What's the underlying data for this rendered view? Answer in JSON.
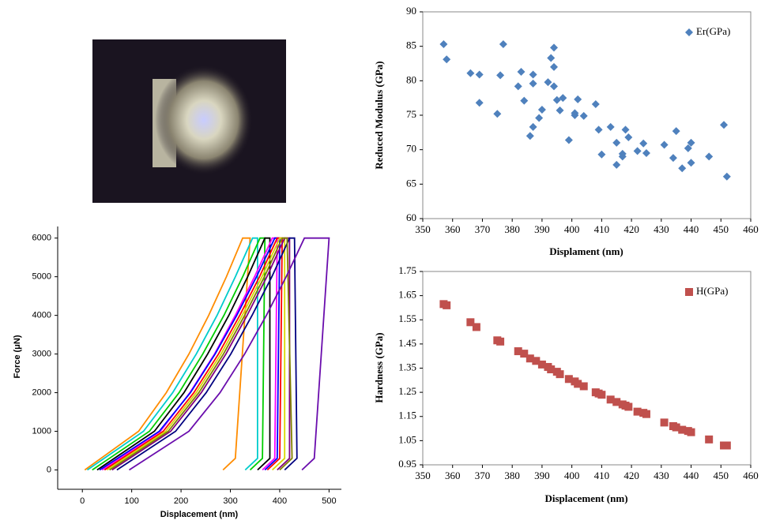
{
  "chart_data": [
    {
      "type": "line",
      "xlabel": "Displacement (nm)",
      "ylabel": "Force (μN)",
      "xlim": [
        -50,
        525
      ],
      "ylim": [
        -500,
        6300
      ],
      "xticks": [
        0,
        100,
        200,
        300,
        400,
        500
      ],
      "yticks": [
        0,
        1000,
        2000,
        3000,
        4000,
        5000,
        6000
      ],
      "series": [
        {
          "color": "#ff8c00",
          "x": [
            5,
            114,
            170,
            216,
            256,
            292,
            325,
            340,
            310,
            285
          ],
          "values": [
            0,
            1000,
            2000,
            3000,
            4000,
            5000,
            6000,
            6000,
            300,
            0
          ]
        },
        {
          "color": "#00cccc",
          "x": [
            10,
            124,
            183,
            231,
            273,
            310,
            345,
            355,
            355,
            330
          ],
          "values": [
            0,
            1000,
            2000,
            3000,
            4000,
            5000,
            6000,
            6000,
            300,
            0
          ]
        },
        {
          "color": "#00cc00",
          "x": [
            20,
            136,
            196,
            244,
            287,
            325,
            360,
            370,
            365,
            340
          ],
          "values": [
            0,
            1000,
            2000,
            3000,
            4000,
            5000,
            6000,
            6000,
            300,
            0
          ]
        },
        {
          "color": "#000000",
          "x": [
            30,
            146,
            206,
            254,
            297,
            335,
            370,
            380,
            380,
            355
          ],
          "values": [
            0,
            1000,
            2000,
            3000,
            4000,
            5000,
            6000,
            6000,
            300,
            0
          ]
        },
        {
          "color": "#ff00ff",
          "x": [
            40,
            158,
            218,
            268,
            310,
            349,
            385,
            395,
            390,
            365
          ],
          "values": [
            0,
            1000,
            2000,
            3000,
            4000,
            5000,
            6000,
            6000,
            300,
            0
          ]
        },
        {
          "color": "#0000ff",
          "x": [
            35,
            156,
            219,
            269,
            313,
            353,
            390,
            400,
            395,
            370
          ],
          "values": [
            0,
            1000,
            2000,
            3000,
            4000,
            5000,
            6000,
            6000,
            300,
            0
          ]
        },
        {
          "color": "#ff0000",
          "x": [
            45,
            164,
            226,
            276,
            319,
            359,
            395,
            405,
            400,
            375
          ],
          "values": [
            0,
            1000,
            2000,
            3000,
            4000,
            5000,
            6000,
            6000,
            300,
            0
          ]
        },
        {
          "color": "#d8d800",
          "x": [
            50,
            169,
            231,
            281,
            324,
            364,
            400,
            410,
            410,
            385
          ],
          "values": [
            0,
            1000,
            2000,
            3000,
            4000,
            5000,
            6000,
            6000,
            300,
            0
          ]
        },
        {
          "color": "#800080",
          "x": [
            60,
            179,
            241,
            291,
            334,
            374,
            410,
            420,
            420,
            395
          ],
          "values": [
            0,
            1000,
            2000,
            3000,
            4000,
            5000,
            6000,
            6000,
            300,
            0
          ]
        },
        {
          "color": "#000080",
          "x": [
            70,
            189,
            251,
            301,
            344,
            384,
            420,
            430,
            435,
            410
          ],
          "values": [
            0,
            1000,
            2000,
            3000,
            4000,
            5000,
            6000,
            6000,
            300,
            0
          ]
        },
        {
          "color": "#808000",
          "x": [
            55,
            174,
            236,
            286,
            329,
            369,
            405,
            415,
            425,
            400
          ],
          "values": [
            0,
            1000,
            2000,
            3000,
            4000,
            5000,
            6000,
            6000,
            300,
            0
          ]
        },
        {
          "color": "#6a0dad",
          "x": [
            95,
            216,
            279,
            329,
            373,
            413,
            450,
            500,
            470,
            445
          ],
          "values": [
            0,
            1000,
            2000,
            3000,
            4000,
            5000,
            6000,
            6000,
            300,
            0
          ]
        }
      ]
    },
    {
      "type": "scatter",
      "xlabel": "Displament (nm)",
      "ylabel": "Reduced Modulus (GPa)",
      "xlim": [
        350,
        460
      ],
      "ylim": [
        60,
        90
      ],
      "xticks": [
        350,
        360,
        370,
        380,
        390,
        400,
        410,
        420,
        430,
        440,
        450,
        460
      ],
      "yticks": [
        60,
        65,
        70,
        75,
        80,
        85,
        90
      ],
      "marker": "diamond",
      "legend": "upper right",
      "series": [
        {
          "name": "Er(GPa)",
          "color": "#4f81bd",
          "x": [
            357,
            358,
            366,
            369,
            369,
            375,
            376,
            377,
            382,
            383,
            384,
            386,
            387,
            387,
            387,
            389,
            390,
            392,
            393,
            394,
            394,
            394,
            395,
            396,
            397,
            399,
            401,
            401,
            402,
            404,
            408,
            409,
            410,
            413,
            415,
            415,
            417,
            417,
            418,
            419,
            422,
            424,
            425,
            431,
            434,
            435,
            437,
            439,
            440,
            440,
            446,
            451,
            452
          ],
          "values": [
            85.3,
            83.1,
            81.1,
            80.9,
            76.8,
            75.2,
            80.8,
            85.3,
            79.2,
            81.3,
            77.1,
            72.0,
            80.9,
            79.6,
            73.3,
            74.6,
            75.8,
            79.8,
            83.3,
            79.2,
            84.8,
            82.0,
            77.2,
            75.7,
            77.5,
            71.4,
            75.0,
            75.3,
            77.3,
            74.9,
            76.6,
            72.9,
            69.3,
            73.3,
            67.8,
            71.0,
            69.0,
            69.4,
            72.9,
            71.8,
            69.8,
            70.9,
            69.5,
            70.7,
            68.8,
            72.7,
            67.3,
            70.2,
            68.1,
            71.0,
            69.0,
            73.6,
            66.1
          ]
        }
      ]
    },
    {
      "type": "scatter",
      "xlabel": "Displacement (nm)",
      "ylabel": "Hardness (GPa)",
      "xlim": [
        350,
        460
      ],
      "ylim": [
        0.95,
        1.75
      ],
      "xticks": [
        350,
        360,
        370,
        380,
        390,
        400,
        410,
        420,
        430,
        440,
        450,
        460
      ],
      "yticks": [
        0.95,
        1.05,
        1.15,
        1.25,
        1.35,
        1.45,
        1.55,
        1.65,
        1.75
      ],
      "marker": "square",
      "legend": "upper right",
      "series": [
        {
          "name": "H(GPa)",
          "color": "#c0504d",
          "x": [
            357,
            358,
            366,
            368,
            375,
            376,
            382,
            384,
            386,
            388,
            390,
            392,
            393,
            395,
            396,
            399,
            401,
            402,
            404,
            408,
            409,
            410,
            413,
            415,
            417,
            418,
            419,
            422,
            424,
            425,
            431,
            434,
            435,
            437,
            439,
            440,
            446,
            451,
            452
          ],
          "values": [
            1.615,
            1.61,
            1.54,
            1.52,
            1.465,
            1.46,
            1.42,
            1.41,
            1.39,
            1.38,
            1.365,
            1.355,
            1.345,
            1.335,
            1.325,
            1.305,
            1.295,
            1.285,
            1.275,
            1.25,
            1.245,
            1.24,
            1.22,
            1.21,
            1.2,
            1.195,
            1.19,
            1.17,
            1.165,
            1.16,
            1.125,
            1.11,
            1.105,
            1.095,
            1.09,
            1.085,
            1.055,
            1.03,
            1.03
          ]
        }
      ]
    }
  ]
}
